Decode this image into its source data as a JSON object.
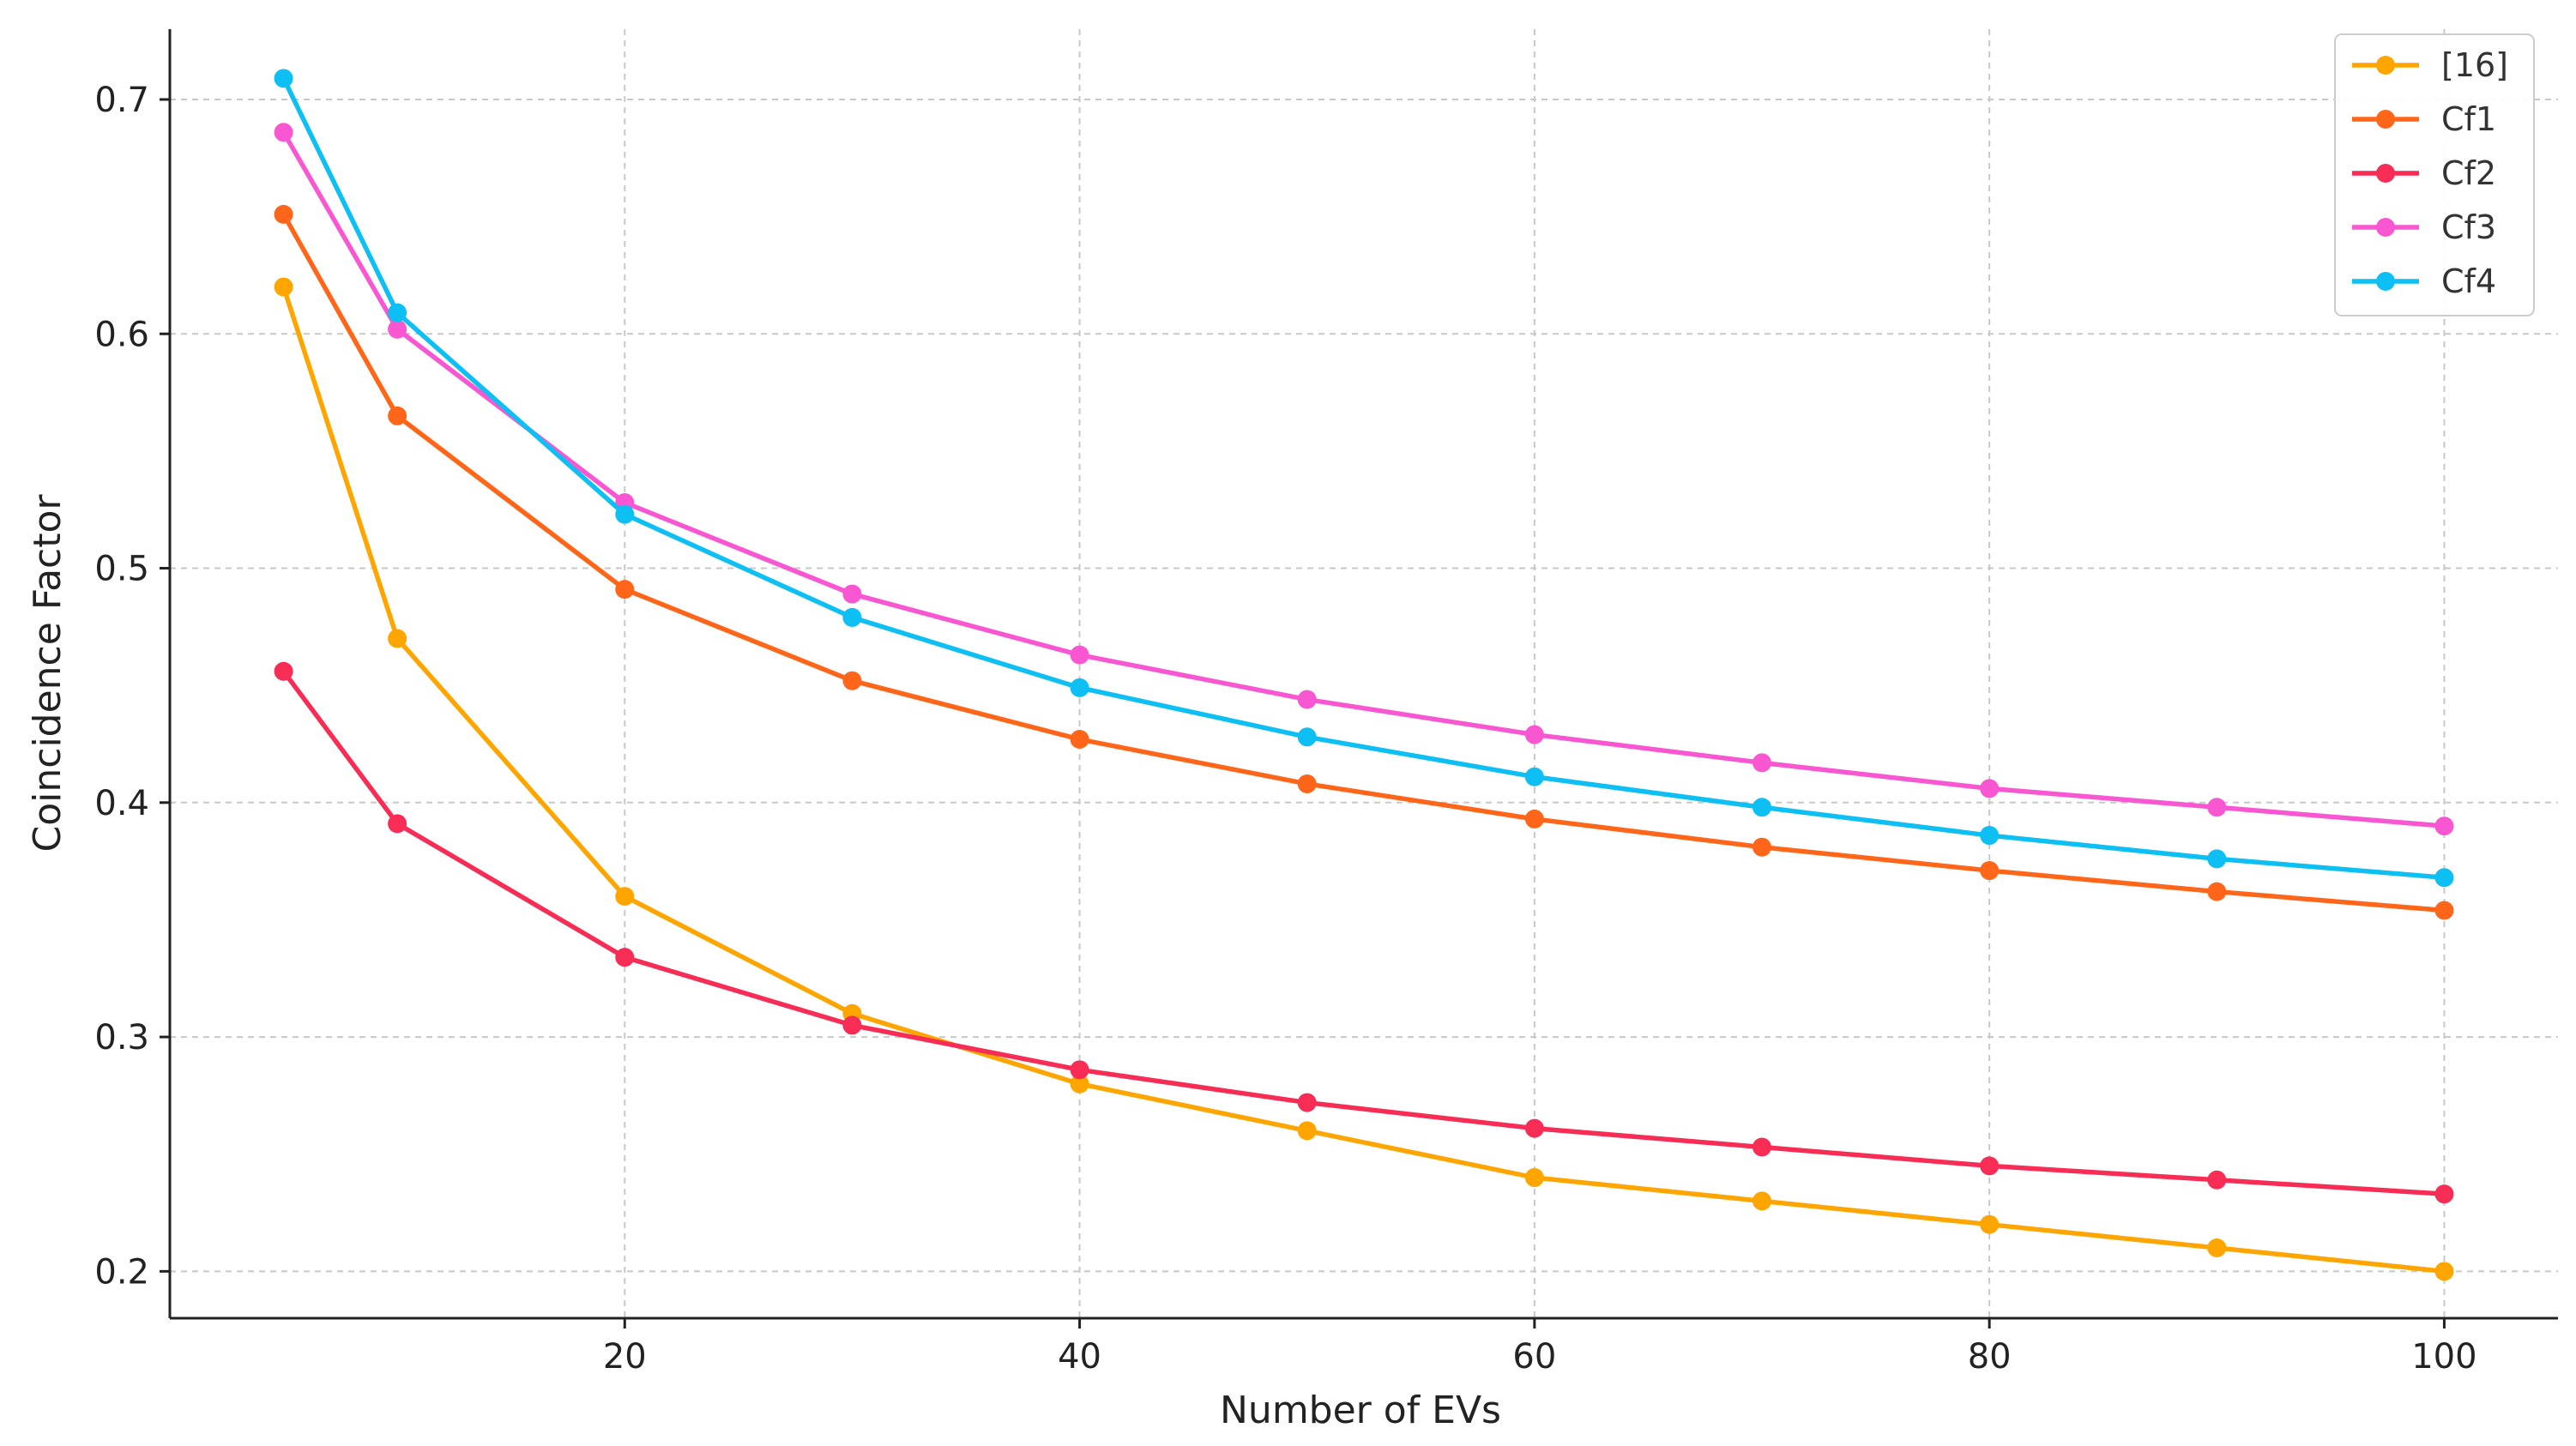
{
  "chart_data": {
    "type": "line",
    "title": "",
    "xlabel": "Number of EVs",
    "ylabel": "Coincidence Factor",
    "xlim": [
      0,
      105
    ],
    "ylim": [
      0.18,
      0.73
    ],
    "xticks": [
      20,
      40,
      60,
      80,
      100
    ],
    "yticks": [
      0.2,
      0.3,
      0.4,
      0.5,
      0.6,
      0.7
    ],
    "grid": true,
    "legend_position": "top-right",
    "x": [
      5,
      10,
      20,
      30,
      40,
      50,
      60,
      70,
      80,
      90,
      100
    ],
    "series": [
      {
        "name": "[16]",
        "color": "#FFA500",
        "values": [
          0.62,
          0.47,
          0.36,
          0.31,
          0.28,
          0.26,
          0.24,
          0.23,
          0.22,
          0.21,
          0.2
        ]
      },
      {
        "name": "Cf1",
        "color": "#FF6619",
        "values": [
          0.651,
          0.565,
          0.491,
          0.452,
          0.427,
          0.408,
          0.393,
          0.381,
          0.371,
          0.362,
          0.354
        ]
      },
      {
        "name": "Cf2",
        "color": "#F72D55",
        "values": [
          0.456,
          0.391,
          0.334,
          0.305,
          0.286,
          0.272,
          0.261,
          0.253,
          0.245,
          0.239,
          0.233
        ]
      },
      {
        "name": "Cf3",
        "color": "#F957D2",
        "values": [
          0.686,
          0.602,
          0.528,
          0.489,
          0.463,
          0.444,
          0.429,
          0.417,
          0.406,
          0.398,
          0.39
        ]
      },
      {
        "name": "Cf4",
        "color": "#0DBFF2",
        "values": [
          0.709,
          0.609,
          0.523,
          0.479,
          0.449,
          0.428,
          0.411,
          0.398,
          0.386,
          0.376,
          0.368
        ]
      }
    ]
  }
}
